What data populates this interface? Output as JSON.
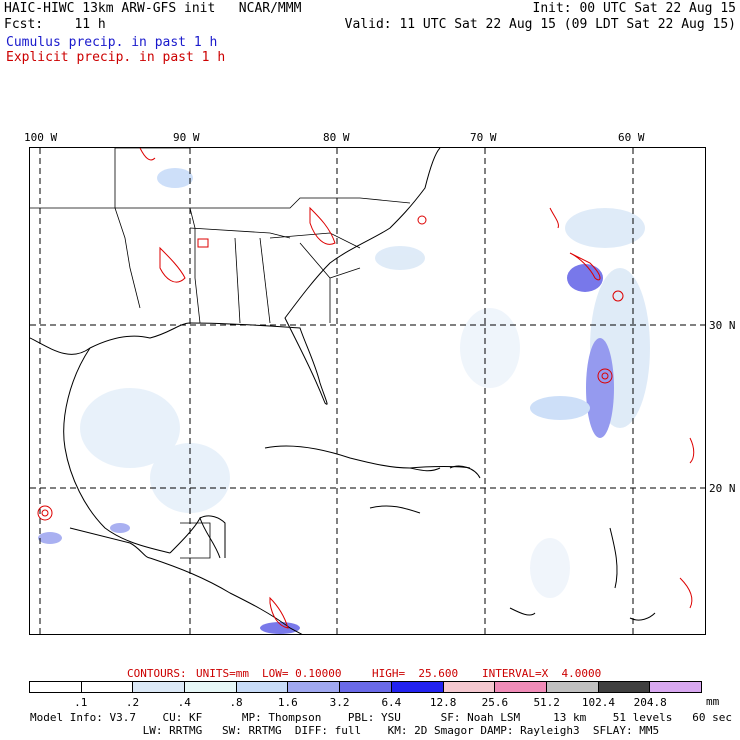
{
  "header": {
    "line1_left": "HAIC-HIWC 13km ARW-GFS init   NCAR/MMM",
    "line1_right": "Init: 00 UTC Sat 22 Aug 15",
    "line2_left": "Fcst:    11 h",
    "line2_right": "Valid: 11 UTC Sat 22 Aug 15 (09 LDT Sat 22 Aug 15)",
    "legend_cumulus": "Cumulus precip. in past 1 h",
    "legend_explicit": "Explicit precip. in past 1 h"
  },
  "map": {
    "lon_labels": [
      "100 W",
      "90 W",
      "80 W",
      "70 W",
      "60 W"
    ],
    "lat_labels": [
      "30 N",
      "20 N"
    ]
  },
  "contour_info": {
    "label": "CONTOURS:",
    "units": "UNITS=mm",
    "low": "LOW= 0.10000",
    "high": "HIGH=  25.600",
    "interval": "INTERVAL=X  4.0000"
  },
  "colorbar": {
    "labels": [
      ".1",
      ".2",
      ".4",
      ".8",
      "1.6",
      "3.2",
      "6.4",
      "12.8",
      "25.6",
      "51.2",
      "102.4",
      "204.8"
    ],
    "unit": "mm",
    "colors": [
      "#ffffff",
      "#ffffff",
      "#dce9f7",
      "#e6f7f7",
      "#c8dcf8",
      "#a0a8f0",
      "#6a6ae8",
      "#2222f0",
      "#f4c8d0",
      "#f08cb8",
      "#c0c0c0",
      "#404040",
      "#d8a8f0"
    ]
  },
  "footer": {
    "line1": "Model Info: V3.7    CU: KF      MP: Thompson    PBL: YSU      SF: Noah LSM     13 km    51 levels   60 sec",
    "line2": "                 LW: RRTMG   SW: RRTMG  DIFF: full    KM: 2D Smagor DAMP: Rayleigh3  SFLAY: MM5"
  }
}
